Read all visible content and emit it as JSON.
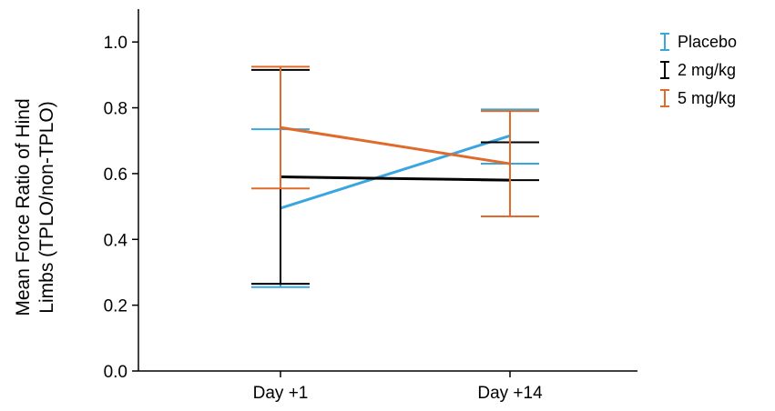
{
  "chart_data": {
    "type": "line",
    "title": "",
    "xlabel": "",
    "ylabel_lines": [
      "Mean Force Ratio of Hind",
      "Limbs (TPLO/non-TPLO)"
    ],
    "categories": [
      "Day +1",
      "Day +14"
    ],
    "ylim": [
      0.0,
      1.1
    ],
    "yticks": [
      "0.0",
      "0.2",
      "0.4",
      "0.6",
      "0.8",
      "1.0"
    ],
    "ytick_values": [
      0.0,
      0.2,
      0.4,
      0.6,
      0.8,
      1.0
    ],
    "grid": false,
    "legend_position": "top-right",
    "series": [
      {
        "name": "Placebo",
        "color": "#3aa6e0",
        "values": [
          0.495,
          0.715
        ],
        "error_low": [
          0.255,
          0.63
        ],
        "error_high": [
          0.735,
          0.795
        ]
      },
      {
        "name": "2 mg/kg",
        "color": "#000000",
        "values": [
          0.59,
          0.58
        ],
        "error_low": [
          0.265,
          0.58
        ],
        "error_high": [
          0.915,
          0.695
        ]
      },
      {
        "name": "5 mg/kg",
        "color": "#e06a2c",
        "values": [
          0.74,
          0.63
        ],
        "error_low": [
          0.555,
          0.47
        ],
        "error_high": [
          0.925,
          0.79
        ]
      }
    ]
  }
}
